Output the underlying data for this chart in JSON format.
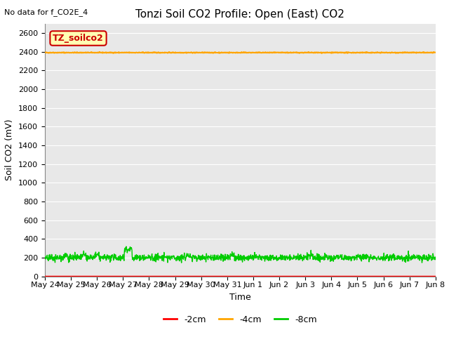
{
  "title": "Tonzi Soil CO2 Profile: Open (East) CO2",
  "no_data_text": "No data for f_CO2E_4",
  "ylabel": "Soil CO2 (mV)",
  "xlabel": "Time",
  "ylim": [
    0,
    2700
  ],
  "yticks": [
    0,
    200,
    400,
    600,
    800,
    1000,
    1200,
    1400,
    1600,
    1800,
    2000,
    2200,
    2400,
    2600
  ],
  "x_tick_labels": [
    "May 24",
    "May 25",
    "May 26",
    "May 27",
    "May 28",
    "May 29",
    "May 30",
    "May 31",
    "Jun 1",
    "Jun 2",
    "Jun 3",
    "Jun 4",
    "Jun 5",
    "Jun 6",
    "Jun 7",
    "Jun 8"
  ],
  "line_2cm_color": "#ff0000",
  "line_4cm_color": "#ffa500",
  "line_8cm_color": "#00cc00",
  "line_4cm_value": 2390,
  "bg_color": "#e8e8e8",
  "legend_box_facecolor": "#ffffb3",
  "legend_box_edgecolor": "#cc0000",
  "legend_box_text": "TZ_soilco2",
  "legend_box_text_color": "#cc0000",
  "legend_labels": [
    "-2cm",
    "-4cm",
    "-8cm"
  ],
  "title_fontsize": 11,
  "axis_label_fontsize": 9,
  "tick_fontsize": 8,
  "legend_fontsize": 9,
  "annotation_fontsize": 8
}
